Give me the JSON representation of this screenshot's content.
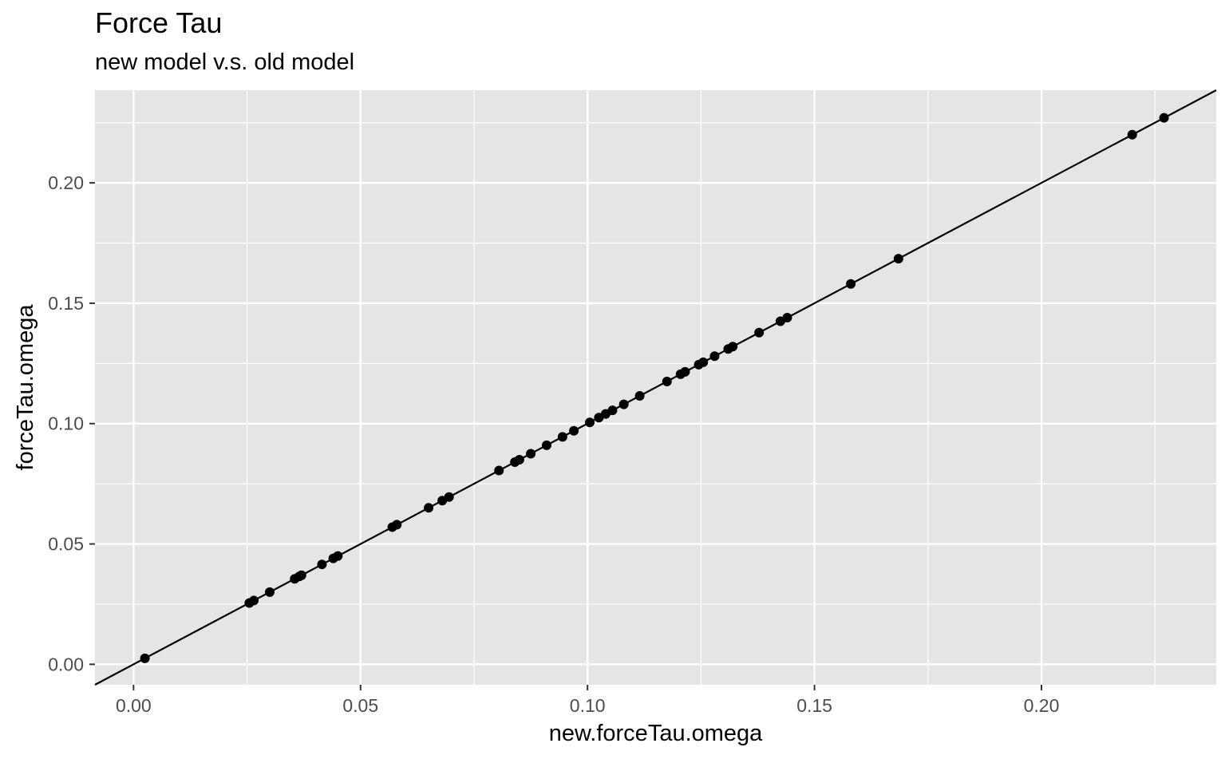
{
  "chart_data": {
    "type": "scatter",
    "title": "Force Tau",
    "subtitle": "new model v.s. old model",
    "xlabel": "new.forceTau.omega",
    "ylabel": "forceTau.omega",
    "xlim": [
      -0.0085,
      0.2385
    ],
    "ylim": [
      -0.0085,
      0.2385
    ],
    "x_ticks": [
      0.0,
      0.05,
      0.1,
      0.15,
      0.2
    ],
    "x_tick_labels": [
      "0.00",
      "0.05",
      "0.10",
      "0.15",
      "0.20"
    ],
    "y_ticks": [
      0.0,
      0.05,
      0.1,
      0.15,
      0.2
    ],
    "y_tick_labels": [
      "0.00",
      "0.05",
      "0.10",
      "0.15",
      "0.20"
    ],
    "grid": true,
    "reference_line": {
      "slope": 1,
      "intercept": 0
    },
    "colors": {
      "panel": "#e5e5e5",
      "grid": "#ffffff",
      "point": "#000000",
      "line": "#000000"
    },
    "points": [
      [
        0.0025,
        0.0025
      ],
      [
        0.0255,
        0.0255
      ],
      [
        0.0265,
        0.0265
      ],
      [
        0.03,
        0.03
      ],
      [
        0.0355,
        0.0355
      ],
      [
        0.0365,
        0.0365
      ],
      [
        0.037,
        0.037
      ],
      [
        0.0415,
        0.0415
      ],
      [
        0.044,
        0.044
      ],
      [
        0.045,
        0.045
      ],
      [
        0.057,
        0.057
      ],
      [
        0.058,
        0.058
      ],
      [
        0.065,
        0.065
      ],
      [
        0.068,
        0.068
      ],
      [
        0.0695,
        0.0695
      ],
      [
        0.0805,
        0.0805
      ],
      [
        0.084,
        0.084
      ],
      [
        0.085,
        0.085
      ],
      [
        0.0875,
        0.0875
      ],
      [
        0.091,
        0.091
      ],
      [
        0.0945,
        0.0945
      ],
      [
        0.097,
        0.097
      ],
      [
        0.1005,
        0.1005
      ],
      [
        0.1025,
        0.1025
      ],
      [
        0.104,
        0.104
      ],
      [
        0.1055,
        0.1055
      ],
      [
        0.108,
        0.108
      ],
      [
        0.1115,
        0.1115
      ],
      [
        0.1175,
        0.1175
      ],
      [
        0.1205,
        0.1205
      ],
      [
        0.1215,
        0.1215
      ],
      [
        0.1245,
        0.1245
      ],
      [
        0.1255,
        0.1255
      ],
      [
        0.128,
        0.128
      ],
      [
        0.131,
        0.131
      ],
      [
        0.132,
        0.132
      ],
      [
        0.1378,
        0.1378
      ],
      [
        0.1425,
        0.1425
      ],
      [
        0.144,
        0.144
      ],
      [
        0.158,
        0.158
      ],
      [
        0.1685,
        0.1685
      ],
      [
        0.22,
        0.22
      ],
      [
        0.227,
        0.227
      ]
    ]
  }
}
